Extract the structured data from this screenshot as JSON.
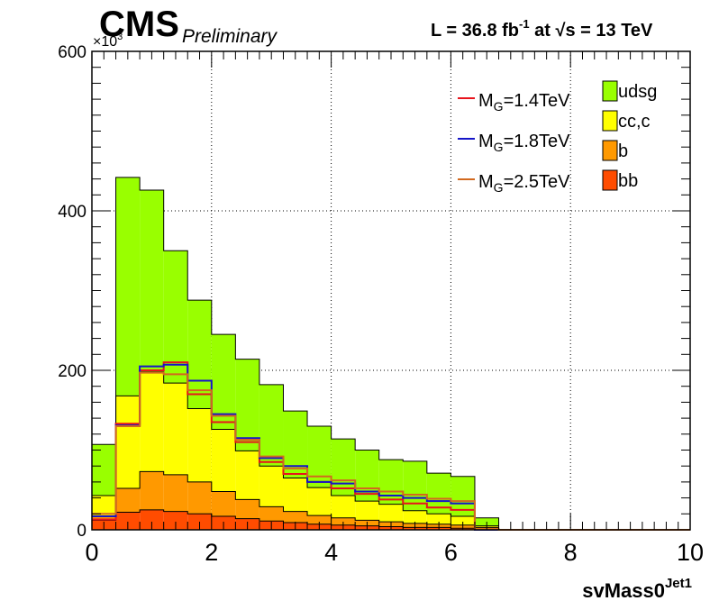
{
  "header": {
    "experiment": "CMS",
    "status": "Preliminary",
    "lumi_prefix": "L = 36.8 fb",
    "lumi_exp": "-1",
    "lumi_mid": " at  ",
    "sqrt_symbol": "√s",
    "lumi_suffix": " = 13 TeV"
  },
  "chart_data": {
    "type": "histogram",
    "title": "",
    "xlabel": "svMass0",
    "xlabel_sup": "Jet1",
    "ylabel": "",
    "y_multiplier": "×10",
    "y_multiplier_exp": "3",
    "xlim": [
      0,
      10
    ],
    "ylim": [
      0,
      600
    ],
    "x_ticks": [
      0,
      2,
      4,
      6,
      8,
      10
    ],
    "y_ticks": [
      0,
      200,
      400,
      600
    ],
    "grid": true,
    "legend_position": "top-right",
    "bin_edges": [
      0,
      0.4,
      0.8,
      1.2,
      1.6,
      2.0,
      2.4,
      2.8,
      3.2,
      3.6,
      4.0,
      4.4,
      4.8,
      5.2,
      5.6,
      6.0,
      6.4,
      6.8,
      7.2,
      7.6,
      8.0,
      8.4,
      8.8,
      9.2,
      9.6,
      10.0
    ],
    "stacked_series": [
      {
        "name": "bb",
        "color": "#ff4c00",
        "values": [
          12,
          22,
          25,
          23,
          20,
          17,
          14,
          11,
          9,
          7,
          6,
          5,
          4,
          3,
          3,
          2,
          1,
          0,
          0,
          0,
          0,
          0,
          0,
          0,
          0
        ]
      },
      {
        "name": "b",
        "color": "#ff9900",
        "values": [
          5,
          30,
          48,
          46,
          40,
          31,
          24,
          18,
          14,
          11,
          9,
          7,
          6,
          5,
          4,
          4,
          2,
          0,
          0,
          0,
          0,
          0,
          0,
          0,
          0
        ]
      },
      {
        "name": "cc,c",
        "color": "#ffff00",
        "values": [
          26,
          116,
          125,
          115,
          92,
          78,
          61,
          51,
          42,
          35,
          28,
          24,
          22,
          16,
          13,
          11,
          2,
          0,
          0,
          0,
          0,
          0,
          0,
          0,
          0
        ]
      },
      {
        "name": "udsg",
        "color": "#99ff00",
        "values": [
          64,
          274,
          228,
          166,
          136,
          119,
          115,
          102,
          84,
          77,
          71,
          64,
          56,
          62,
          51,
          50,
          10,
          0,
          0,
          0,
          0,
          0,
          0,
          0,
          0
        ]
      }
    ],
    "line_series": [
      {
        "name": "M_G=1.4TeV",
        "label_main": "M",
        "label_sub": "G",
        "label_rest": "=1.4TeV",
        "color": "#e8141c",
        "values": [
          13,
          133,
          200,
          210,
          170,
          135,
          110,
          85,
          70,
          60,
          52,
          45,
          38,
          33,
          28,
          25,
          0,
          0,
          0,
          0,
          0,
          0,
          0,
          0,
          0
        ]
      },
      {
        "name": "M_G=1.8TeV",
        "label_main": "M",
        "label_sub": "G",
        "label_rest": "=1.8TeV",
        "color": "#1515c8",
        "values": [
          17,
          131,
          205,
          207,
          187,
          145,
          115,
          90,
          80,
          60,
          58,
          48,
          43,
          40,
          36,
          33,
          0,
          0,
          0,
          0,
          0,
          0,
          0,
          0,
          0
        ]
      },
      {
        "name": "M_G=2.5TeV",
        "label_main": "M",
        "label_sub": "G",
        "label_rest": "=2.5TeV",
        "color": "#d2691e",
        "values": [
          20,
          130,
          197,
          195,
          175,
          143,
          113,
          92,
          77,
          67,
          62,
          52,
          48,
          44,
          39,
          36,
          1,
          0,
          0,
          0,
          0,
          0,
          0,
          0,
          0
        ]
      }
    ],
    "legend_fill_order": [
      "udsg",
      "cc,c",
      "b",
      "bb"
    ]
  }
}
